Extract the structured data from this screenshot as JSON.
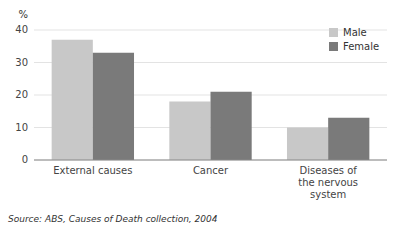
{
  "chart_data": {
    "type": "bar",
    "categories": [
      "External causes",
      "Cancer",
      "Diseases of\nthe nervous\nsystem"
    ],
    "series": [
      {
        "name": "Male",
        "color": "#c8c8c8",
        "values": [
          37,
          18,
          10
        ]
      },
      {
        "name": "Female",
        "color": "#7a7a7a",
        "values": [
          33,
          21,
          13
        ]
      }
    ],
    "ylabel": "%",
    "ylim": [
      0,
      40
    ],
    "yticks": [
      0,
      10,
      20,
      30,
      40
    ],
    "grid": true,
    "legend": "upper right",
    "source": "Source: ABS, Causes of Death collection, 2004"
  }
}
